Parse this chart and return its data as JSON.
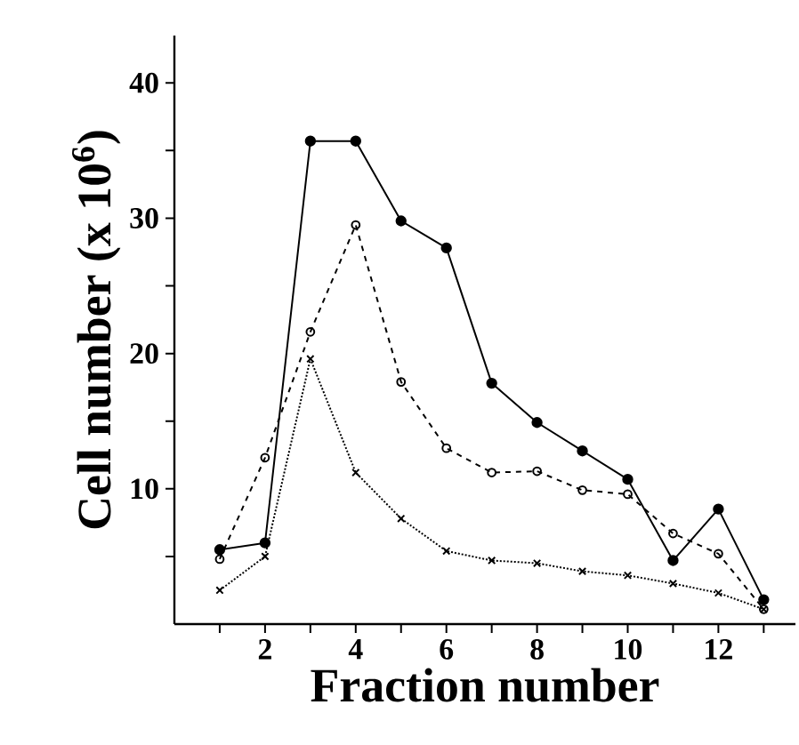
{
  "chart_data": {
    "type": "line",
    "xlabel": "Fraction number",
    "ylabel": "Cell number (x 10$^{6}$)",
    "x": [
      1,
      2,
      3,
      4,
      5,
      6,
      7,
      8,
      9,
      10,
      11,
      12,
      13
    ],
    "series": [
      {
        "color": "#000000",
        "marker": "circle",
        "line_style": "solid",
        "values": [
          5.5,
          6.0,
          35.7,
          35.7,
          29.8,
          27.8,
          17.8,
          14.9,
          12.8,
          10.7,
          4.7,
          8.5,
          1.8
        ]
      },
      {
        "color": "#000000",
        "marker": "open circle",
        "line_style": "dashed",
        "values": [
          4.8,
          12.3,
          21.6,
          29.5,
          17.9,
          13.0,
          11.2,
          11.3,
          9.9,
          9.6,
          6.7,
          5.2,
          1.1
        ]
      },
      {
        "color": "#000000",
        "marker": "cross",
        "line_style": "dotted",
        "values": [
          2.5,
          5.0,
          19.6,
          11.2,
          7.8,
          5.4,
          4.7,
          4.5,
          3.9,
          3.6,
          3.0,
          2.3,
          1.1
        ]
      }
    ],
    "xlim": [
      0,
      13.7
    ],
    "ylim": [
      0,
      43.5
    ],
    "xticks": [
      {
        "value": 1,
        "label": null
      },
      2,
      {
        "value": 3,
        "label": null
      },
      4,
      {
        "value": 5,
        "label": null
      },
      6,
      {
        "value": 7,
        "label": null
      },
      8,
      {
        "value": 9,
        "label": null
      },
      10,
      {
        "value": 11,
        "label": null
      },
      12,
      {
        "value": 13,
        "label": null
      }
    ],
    "yticks": [
      {
        "value": 5,
        "label": null
      },
      10,
      {
        "value": 15,
        "label": null
      },
      20,
      {
        "value": 25,
        "label": null
      },
      30,
      {
        "value": 35,
        "label": null
      },
      40
    ]
  }
}
